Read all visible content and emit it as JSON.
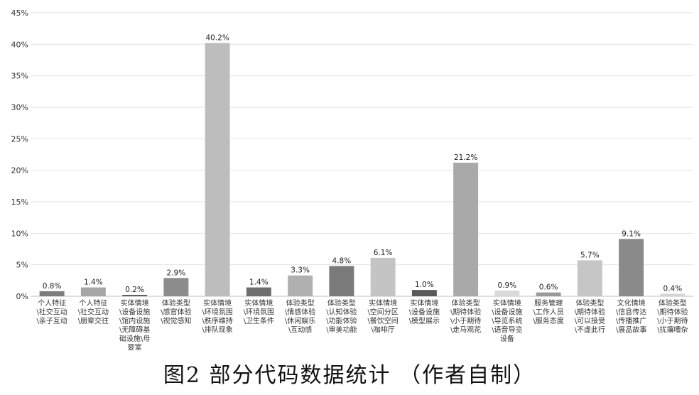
{
  "chart_data": {
    "type": "bar",
    "title": "",
    "xlabel": "",
    "ylabel": "",
    "ylim": [
      0,
      45
    ],
    "yticks": [
      "0%",
      "5%",
      "10%",
      "15%",
      "20%",
      "25%",
      "30%",
      "35%",
      "40%",
      "45%"
    ],
    "grid": true,
    "legend": "none",
    "categories": [
      "个人特征\\社交互动\\亲子互动",
      "个人特征\\社交互动\\朋辈交往",
      "实体情境\\设备设施\\馆内设施\\无障碍基础设施\\母婴室",
      "体验类型\\感官体验\\视觉感知",
      "实体情境\\环境氛围\\秩序维持\\排队现象",
      "实体情境\\环境氛围\\卫生条件",
      "体验类型\\情感体验\\休闲娱乐\\互动感",
      "体验类型\\认知体验\\功能体验\\审美功能",
      "实体情境\\空间分区\\餐饮空间\\咖啡厅",
      "实体情境\\设备设施\\模型展示",
      "体验类型\\期待体验\\小于期待\\走马观花",
      "实体情境\\设备设施\\导览系统\\语音导览设备",
      "服务管理\\工作人员\\服务态度",
      "体验类型\\期待体验\\可以接受\\不虚此行",
      "文化情境\\信息传达\\传播推广\\展品故事",
      "体验类型\\期待体验\\小于期待\\扰攘嘈杂"
    ],
    "category_lines": [
      [
        "个人特征",
        "\\社交互动",
        "\\亲子互动"
      ],
      [
        "个人特征",
        "\\社交互动",
        "\\朋辈交往"
      ],
      [
        "实体情境",
        "\\设备设施",
        "\\馆内设施",
        "\\无障碍基",
        "础设施\\母",
        "婴室"
      ],
      [
        "体验类型",
        "\\感官体验",
        "\\视觉感知"
      ],
      [
        "实体情境",
        "\\环境氛围",
        "\\秩序维持",
        "\\排队现象"
      ],
      [
        "实体情境",
        "\\环境氛围",
        "\\卫生条件"
      ],
      [
        "体验类型",
        "\\情感体验",
        "\\休闲娱乐",
        "\\互动感"
      ],
      [
        "体验类型",
        "\\认知体验",
        "\\功能体验",
        "\\审美功能"
      ],
      [
        "实体情境",
        "\\空间分区",
        "\\餐饮空间",
        "\\咖啡厅"
      ],
      [
        "实体情境",
        "\\设备设施",
        "\\模型展示"
      ],
      [
        "体验类型",
        "\\期待体验",
        "\\小于期待",
        "\\走马观花"
      ],
      [
        "实体情境",
        "\\设备设施",
        "\\导览系统",
        "\\语音导览",
        "设备"
      ],
      [
        "服务管理",
        "\\工作人员",
        "\\服务态度"
      ],
      [
        "体验类型",
        "\\期待体验",
        "\\可以接受",
        "\\不虚此行"
      ],
      [
        "文化情境",
        "\\信息传达",
        "\\传播推广",
        "\\展品故事"
      ],
      [
        "体验类型",
        "\\期待体验",
        "\\小于期待",
        "\\扰攘嘈杂"
      ]
    ],
    "values": [
      0.8,
      1.4,
      0.2,
      2.9,
      40.2,
      1.4,
      3.3,
      4.8,
      6.1,
      1.0,
      21.2,
      0.9,
      0.6,
      5.7,
      9.1,
      0.4
    ],
    "value_labels": [
      "0.8%",
      "1.4%",
      "0.2%",
      "2.9%",
      "40.2%",
      "1.4%",
      "3.3%",
      "4.8%",
      "6.1%",
      "1.0%",
      "21.2%",
      "0.9%",
      "0.6%",
      "5.7%",
      "9.1%",
      "0.4%"
    ],
    "bar_colors": [
      "#7d7d7d",
      "#a6a6a6",
      "#4a4a4a",
      "#8c8c8c",
      "#bdbdbd",
      "#6e6e6e",
      "#b0b0b0",
      "#7a7a7a",
      "#c4c4c4",
      "#5a5a5a",
      "#a9a9a9",
      "#d9d9d9",
      "#9a9a9a",
      "#c6c6c6",
      "#8a8a8a",
      "#d4d4d4"
    ]
  },
  "caption": "图2 部分代码数据统计 （作者自制）"
}
